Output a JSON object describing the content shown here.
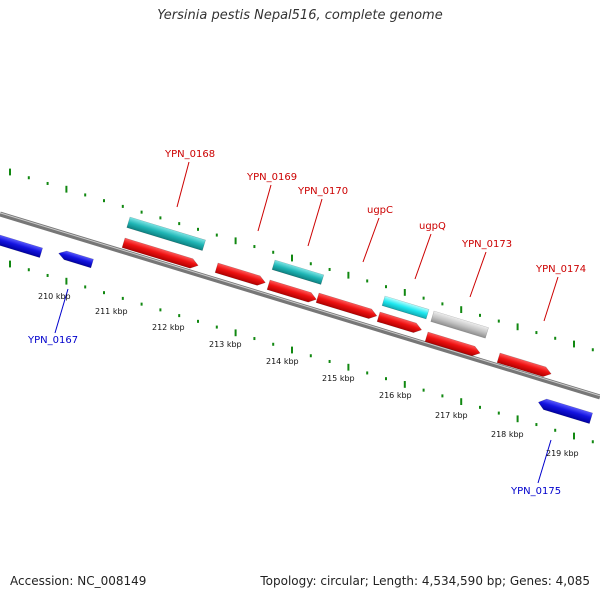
{
  "title": "Yersinia pestis Nepal516, complete genome",
  "footer": {
    "accession": "Accession: NC_008149",
    "summary": "Topology: circular; Length: 4,534,590 bp; Genes: 4,085"
  },
  "colors": {
    "forward_cds": "#e41a1c",
    "reverse_cds": "#1414e0",
    "rna_dark": "#1fb5b5",
    "rna_light": "#1fe8f0",
    "other": "#bbbbbb",
    "tick": "#118811",
    "backbone": "#888888",
    "forward_label": "#cc0000",
    "reverse_label": "#0000cc"
  },
  "scale_labels": [
    "210 kbp",
    "211 kbp",
    "212 kbp",
    "213 kbp",
    "214 kbp",
    "215 kbp",
    "216 kbp",
    "217 kbp",
    "218 kbp",
    "219 kbp"
  ],
  "gene_labels": [
    {
      "text": "YPN_0168",
      "strand": "forward"
    },
    {
      "text": "YPN_0169",
      "strand": "forward"
    },
    {
      "text": "YPN_0170",
      "strand": "forward"
    },
    {
      "text": "ugpC",
      "strand": "forward"
    },
    {
      "text": "ugpQ",
      "strand": "forward"
    },
    {
      "text": "YPN_0173",
      "strand": "forward"
    },
    {
      "text": "YPN_0174",
      "strand": "forward"
    },
    {
      "text": "YPN_0167",
      "strand": "reverse"
    },
    {
      "text": "YPN_0175",
      "strand": "reverse"
    }
  ]
}
